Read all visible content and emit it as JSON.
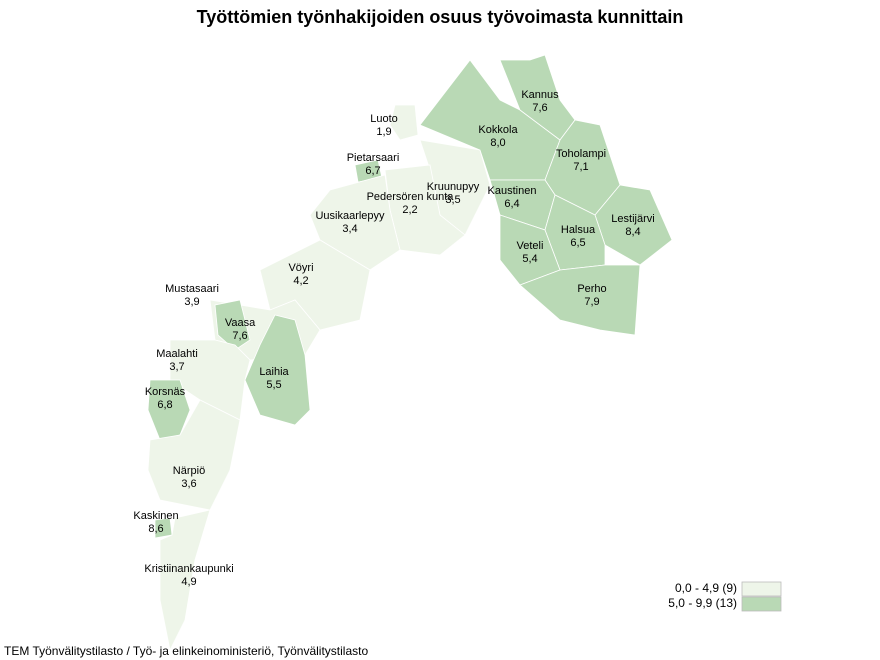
{
  "chart_data": {
    "type": "choropleth",
    "title": "Työttömien työnhakijoiden osuus työvoimasta kunnittain",
    "source": "TEM Työnvälitystilasto / Työ- ja elinkeinoministeriö, Työnvälitystilasto",
    "categories": [
      "Luoto",
      "Pietarsaari",
      "Kruunupyy",
      "Pedersören kunta",
      "Uusikaarlepyy",
      "Kokkola",
      "Kannus",
      "Toholampi",
      "Kaustinen",
      "Lestijärvi",
      "Halsua",
      "Veteli",
      "Perho",
      "Vöyri",
      "Mustasaari",
      "Vaasa",
      "Laihia",
      "Maalahti",
      "Korsnäs",
      "Närpiö",
      "Kaskinen",
      "Kristiinankaupunki"
    ],
    "values": [
      1.9,
      6.7,
      3.5,
      2.2,
      3.4,
      8.0,
      7.6,
      7.1,
      6.4,
      8.4,
      6.5,
      5.4,
      7.9,
      4.2,
      3.9,
      7.6,
      5.5,
      3.7,
      6.8,
      3.6,
      8.6,
      4.9
    ],
    "value_labels": [
      "1,9",
      "6,7",
      "3,5",
      "2,2",
      "3,4",
      "8,0",
      "7,6",
      "7,1",
      "6,4",
      "8,4",
      "6,5",
      "5,4",
      "7,9",
      "4,2",
      "3,9",
      "7,6",
      "5,5",
      "3,7",
      "6,8",
      "3,6",
      "8,6",
      "4,9"
    ],
    "classes": [
      {
        "label": "0,0 - 4,9 (9)",
        "range": [
          0,
          4.9
        ],
        "color": "#eef5e9"
      },
      {
        "label": "5,0 - 9,9 (13)",
        "range": [
          5,
          9.9
        ],
        "color": "#b9d9b5"
      }
    ]
  }
}
